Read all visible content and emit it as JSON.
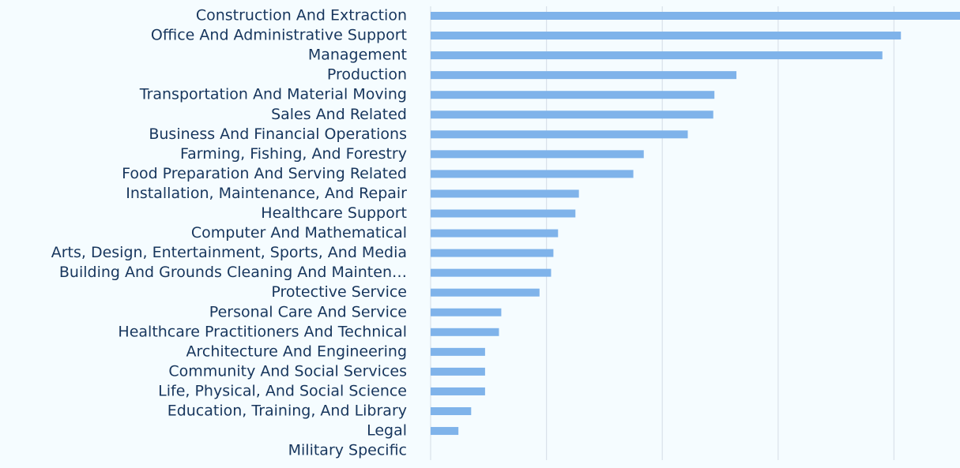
{
  "chart_data": {
    "type": "barh",
    "categories": [
      "Construction And Extraction",
      "Office And Administrative Support",
      "Management",
      "Production",
      "Transportation And Material Moving",
      "Sales And Related",
      "Business And Financial Operations",
      "Farming, Fishing, And Forestry",
      "Food Preparation And Serving Related",
      "Installation, Maintenance, And Repair",
      "Healthcare Support",
      "Computer And Mathematical",
      "Arts, Design, Entertainment, Sports, And Media",
      "Building And Grounds Cleaning And Mainten…",
      "Protective Service",
      "Personal Care And Service",
      "Healthcare Practitioners And Technical",
      "Architecture And Engineering",
      "Community And Social Services",
      "Life, Physical, And Social Science",
      "Education, Training, And Library",
      "Legal",
      "Military Specific"
    ],
    "values": [
      45.7,
      40.6,
      39.0,
      26.4,
      24.5,
      24.4,
      22.2,
      18.4,
      17.5,
      12.8,
      12.5,
      11.0,
      10.6,
      10.4,
      9.4,
      6.1,
      5.9,
      4.7,
      4.7,
      4.7,
      3.5,
      2.4,
      0
    ],
    "color": "#7fb3ea",
    "xlim": [
      0,
      45.7
    ],
    "xticks": [
      0,
      10,
      20,
      30,
      40
    ],
    "grid": true
  }
}
